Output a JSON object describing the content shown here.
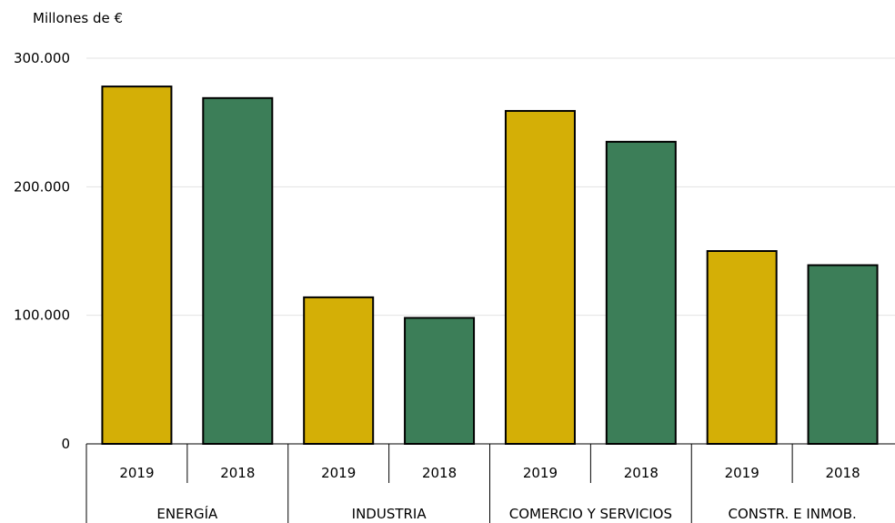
{
  "chart_data": {
    "type": "bar",
    "unit_label": "Millones de €",
    "yticks": [
      {
        "value": 0,
        "label": "0"
      },
      {
        "value": 100000,
        "label": "100.000"
      },
      {
        "value": 200000,
        "label": "200.000"
      },
      {
        "value": 300000,
        "label": "300.000"
      }
    ],
    "ylim": [
      0,
      300000
    ],
    "grid": true,
    "groups": [
      {
        "label": "ENERGÍA",
        "bars": [
          {
            "year": "2019",
            "value": 278000
          },
          {
            "year": "2018",
            "value": 269000
          }
        ]
      },
      {
        "label": "INDUSTRIA",
        "bars": [
          {
            "year": "2019",
            "value": 114000
          },
          {
            "year": "2018",
            "value": 98000
          }
        ]
      },
      {
        "label": "COMERCIO Y SERVICIOS",
        "bars": [
          {
            "year": "2019",
            "value": 259000
          },
          {
            "year": "2018",
            "value": 235000
          }
        ]
      },
      {
        "label": "CONSTR. E INMOB.",
        "bars": [
          {
            "year": "2019",
            "value": 150000
          },
          {
            "year": "2018",
            "value": 139000
          }
        ]
      }
    ],
    "colors": {
      "2019": "#d4af06",
      "2018": "#3c7e58"
    }
  }
}
